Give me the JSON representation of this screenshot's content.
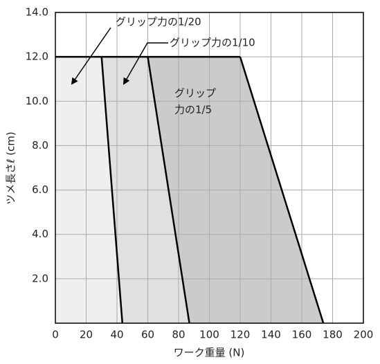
{
  "chart_data": {
    "type": "area",
    "x_label": "ワーク重量 (N)",
    "y_label": "ツメ長さℓ (cm)",
    "xlim": [
      0,
      200
    ],
    "ylim": [
      0,
      14
    ],
    "xticks": [
      0,
      20,
      40,
      60,
      80,
      100,
      120,
      140,
      160,
      180,
      200
    ],
    "yticks": [
      {
        "value": 2,
        "label": "2.0"
      },
      {
        "value": 4,
        "label": "4.0"
      },
      {
        "value": 6,
        "label": "6.0"
      },
      {
        "value": 8,
        "label": "8.0"
      },
      {
        "value": 10,
        "label": "10.0"
      },
      {
        "value": 12,
        "label": "12.0"
      },
      {
        "value": 14,
        "label": "14.0"
      }
    ],
    "grid": true,
    "regions": [
      {
        "label": [
          "グリップ力の1/20"
        ],
        "color": "#efefef",
        "x": [
          30,
          43.5
        ],
        "y": [
          12,
          0
        ]
      },
      {
        "label": [
          "グリップ力の1/10"
        ],
        "color": "#e0e0e0",
        "x": [
          60,
          87
        ],
        "y": [
          12,
          0
        ]
      },
      {
        "label": [
          "グリップ",
          "力の1/5"
        ],
        "color": "#cbcbcb",
        "x": [
          120,
          174
        ],
        "y": [
          12,
          0
        ]
      }
    ]
  }
}
